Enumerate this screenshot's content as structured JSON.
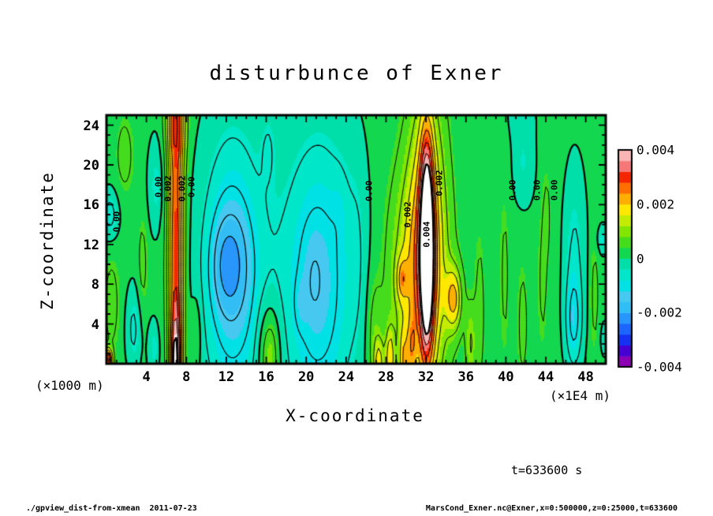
{
  "title": "disturbunce of Exner",
  "time_annotation": "t=633600 s",
  "footer": {
    "left": "./gpview_dist-from-xmean  2011-07-23",
    "right": "MarsCond_Exner.nc@Exner,x=0:500000,z=0:25000,t=633600"
  },
  "chart_data": {
    "type": "heatmap",
    "subtype": "filled_contour_xz_section",
    "title": "disturbunce of Exner",
    "x_axis": {
      "label": "X-coordinate",
      "unit": "(×1E4 m)",
      "range": [
        0,
        50
      ],
      "major_ticks": [
        4,
        8,
        12,
        16,
        20,
        24,
        28,
        32,
        36,
        40,
        44,
        48
      ],
      "minor_tick_interval": 1
    },
    "z_axis": {
      "label": "Z-coordinate",
      "unit": "(×1000 m)",
      "range": [
        0,
        25
      ],
      "major_ticks": [
        4,
        8,
        12,
        16,
        20,
        24
      ],
      "minor_tick_interval": 1
    },
    "colorbar": {
      "min": -0.004,
      "max": 0.004,
      "step": 0.0004,
      "labels": [
        "0.004",
        "0.002",
        "0",
        "-0.002",
        "-0.004"
      ],
      "label_fractions_from_top": [
        0,
        0.25,
        0.5,
        0.75,
        1
      ],
      "palette_low_to_high": [
        "#8c00b4",
        "#4600d2",
        "#1432f0",
        "#1e64ff",
        "#2896fa",
        "#32bef5",
        "#46c8f0",
        "#00e1e6",
        "#00e6c8",
        "#00dfaa",
        "#14d750",
        "#46dc1e",
        "#82e600",
        "#c3ec00",
        "#ffe800",
        "#ffaf00",
        "#ff6e00",
        "#f52500",
        "#f57878",
        "#f9b4b4"
      ],
      "over_color": "#ffffff"
    },
    "contour": {
      "interval": 0.0005,
      "zero_level_thick_solid": 0,
      "thick_level": 0.004,
      "negative_levels_dashed": [
        -0.003,
        -0.0025,
        -0.002,
        -0.0015,
        -0.001,
        -0.0005
      ],
      "positive_levels_thin": [
        0.0005,
        0.001,
        0.0015,
        0.002,
        0.0025,
        0.003,
        0.0035
      ]
    },
    "contour_labels": [
      {
        "t": "0.00",
        "x": 1.0,
        "z": 14.3
      },
      {
        "t": "0.00",
        "x": 5.2,
        "z": 17.8
      },
      {
        "t": "0.002",
        "x": 6.15,
        "z": 17.6
      },
      {
        "t": "0.002",
        "x": 7.6,
        "z": 17.6
      },
      {
        "t": "0.00",
        "x": 8.55,
        "z": 17.8
      },
      {
        "t": "0.00",
        "x": 26.3,
        "z": 17.4
      },
      {
        "t": "0.002",
        "x": 30.2,
        "z": 15.0
      },
      {
        "t": "0.004",
        "x": 32.1,
        "z": 13.0
      },
      {
        "t": "0.002",
        "x": 33.3,
        "z": 18.2
      },
      {
        "t": "0.00",
        "x": 40.7,
        "z": 17.5
      },
      {
        "t": "0.00",
        "x": 43.1,
        "z": 17.5
      },
      {
        "t": "0.00",
        "x": 44.9,
        "z": 17.5
      }
    ],
    "field": {
      "description": "Exner disturbance approximated as base + sum of gaussians [cx, cz, sx, sz, amplitude] in data coords",
      "base": 0.0002,
      "components": [
        [
          0.15,
          0.4,
          0.38,
          1.0,
          0.003
        ],
        [
          0.5,
          6,
          0.8,
          5,
          0.0005
        ],
        [
          0.35,
          15,
          0.9,
          2.6,
          -0.0009
        ],
        [
          2.7,
          3.5,
          0.8,
          4.5,
          -0.0008
        ],
        [
          4.7,
          1.5,
          0.6,
          3.0,
          -0.0007
        ],
        [
          1.8,
          21,
          0.9,
          4,
          0.0005
        ],
        [
          3.6,
          10,
          0.5,
          5,
          0.0005
        ],
        [
          4.9,
          18,
          0.8,
          5,
          -0.0007
        ],
        [
          6.9,
          -1,
          0.55,
          6,
          0.003
        ],
        [
          6.9,
          12,
          0.8,
          15,
          0.0028
        ],
        [
          6.9,
          25,
          0.95,
          5,
          0.0016
        ],
        [
          9.0,
          3,
          0.5,
          4,
          0.0006
        ],
        [
          12.6,
          9,
          3.3,
          15,
          -0.0016
        ],
        [
          12.2,
          10,
          1.7,
          4.8,
          -0.001
        ],
        [
          16.3,
          1,
          1.1,
          5,
          0.0013
        ],
        [
          16.2,
          22,
          0.8,
          4,
          -0.0004
        ],
        [
          21.2,
          8,
          4.0,
          16,
          -0.0015
        ],
        [
          20.8,
          8.5,
          0.9,
          4.0,
          -0.0003
        ],
        [
          19.4,
          6,
          0.6,
          2.5,
          -0.0003
        ],
        [
          23.4,
          16,
          0.8,
          4,
          -0.0002
        ],
        [
          26.8,
          3,
          0.8,
          6,
          0.0006
        ],
        [
          25.2,
          12,
          1.0,
          10,
          -0.0003
        ],
        [
          32.1,
          12,
          0.65,
          10,
          0.004
        ],
        [
          32.1,
          12,
          1.8,
          16,
          0.0018
        ],
        [
          31.0,
          9,
          2.9,
          11,
          0.0012
        ],
        [
          29.6,
          8.5,
          0.55,
          2.2,
          0.0011
        ],
        [
          27.3,
          0,
          0.5,
          2.5,
          0.0013
        ],
        [
          28.4,
          0.5,
          0.45,
          3,
          0.0015
        ],
        [
          29.8,
          0,
          0.5,
          3.5,
          0.0012
        ],
        [
          30.6,
          1.5,
          0.4,
          3,
          0.001
        ],
        [
          34.8,
          6.5,
          0.8,
          3.2,
          0.0017
        ],
        [
          36.5,
          2,
          0.5,
          4,
          0.0008
        ],
        [
          41.8,
          20,
          1.2,
          4.5,
          -0.0006
        ],
        [
          41.5,
          25.5,
          1.5,
          3,
          -0.0004
        ],
        [
          37.4,
          5,
          0.5,
          8,
          0.0005
        ],
        [
          39.9,
          9,
          0.5,
          9,
          0.0004
        ],
        [
          41.7,
          4,
          0.5,
          6,
          0.0005
        ],
        [
          43.7,
          8,
          0.5,
          7,
          0.0004
        ],
        [
          44.1,
          15,
          0.45,
          5,
          0.0004
        ],
        [
          46.8,
          4,
          0.9,
          5,
          -0.0011
        ],
        [
          46.9,
          12,
          1.2,
          9,
          -0.0007
        ],
        [
          49.7,
          12.5,
          0.6,
          1.6,
          -0.0007
        ],
        [
          49.9,
          2.5,
          0.5,
          2,
          -0.0005
        ],
        [
          48.9,
          7,
          0.45,
          6,
          0.0005
        ]
      ]
    }
  }
}
